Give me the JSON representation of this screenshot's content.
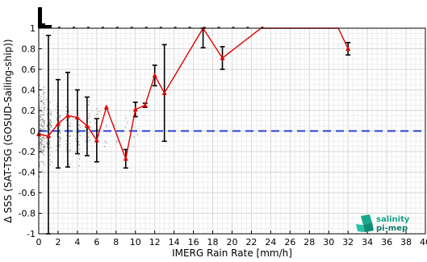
{
  "chart_data": {
    "type": "line",
    "xlabel": "IMERG Rain Rate [mm/h]",
    "ylabel": "Δ SSS (SAT-TSG (GOSUD-Sailing-ship))",
    "xlim": [
      0,
      40
    ],
    "ylim": [
      -1,
      1
    ],
    "x_ticks": [
      0,
      2,
      4,
      6,
      8,
      10,
      12,
      14,
      16,
      18,
      20,
      22,
      24,
      26,
      28,
      30,
      32,
      34,
      36,
      38,
      40
    ],
    "y_ticks": [
      -1,
      -0.8,
      -0.6,
      -0.4,
      -0.2,
      0,
      0.2,
      0.4,
      0.6,
      0.8,
      1
    ],
    "x_tick_labels": [
      "0",
      "2",
      "4",
      "6",
      "8",
      "10",
      "12",
      "14",
      "16",
      "18",
      "20",
      "22",
      "24",
      "26",
      "28",
      "30",
      "32",
      "34",
      "36",
      "38",
      "40"
    ],
    "y_tick_labels": [
      "-1",
      "-0.8",
      "-0.6",
      "-0.4",
      "-0.2",
      "0",
      "0.2",
      "0.4",
      "0.6",
      "0.8",
      "1"
    ],
    "grid": true,
    "zero_line": 0,
    "series": [
      {
        "color": "#e00000",
        "points": [
          {
            "x": 0,
            "y": -0.03
          },
          {
            "x": 1,
            "y": -0.05,
            "ylo": -1.0,
            "yhi": 0.93
          },
          {
            "x": 2,
            "y": 0.07,
            "ylo": -0.36,
            "yhi": 0.5
          },
          {
            "x": 3,
            "y": 0.15,
            "ylo": -0.35,
            "yhi": 0.57
          },
          {
            "x": 4,
            "y": 0.13,
            "ylo": -0.22,
            "yhi": 0.4
          },
          {
            "x": 5,
            "y": 0.05,
            "ylo": -0.24,
            "yhi": 0.33
          },
          {
            "x": 6,
            "y": -0.09,
            "ylo": -0.3,
            "yhi": 0.12
          },
          {
            "x": 7,
            "y": 0.23
          },
          {
            "x": 9,
            "y": -0.27,
            "ylo": -0.36,
            "yhi": -0.18
          },
          {
            "x": 10,
            "y": 0.21,
            "ylo": 0.14,
            "yhi": 0.28
          },
          {
            "x": 11,
            "y": 0.25,
            "ylo": 0.23,
            "yhi": 0.27
          },
          {
            "x": 12,
            "y": 0.54,
            "ylo": 0.44,
            "yhi": 0.64
          },
          {
            "x": 13,
            "y": 0.37,
            "ylo": -0.1,
            "yhi": 0.84
          },
          {
            "x": 17,
            "y": 1.0,
            "ylo": 0.81,
            "yhi": 1.0
          },
          {
            "x": 19,
            "y": 0.71,
            "ylo": 0.6,
            "yhi": 0.82
          },
          {
            "x": 23,
            "y": 1.0
          },
          {
            "x": 31,
            "y": 1.0
          },
          {
            "x": 32,
            "y": 0.8,
            "ylo": 0.74,
            "yhi": 0.86
          }
        ],
        "segments": [
          [
            0,
            16
          ],
          [
            16,
            17
          ]
        ]
      }
    ],
    "scatter_note_x": [
      0,
      1,
      2,
      3,
      4,
      5,
      6,
      7,
      8,
      9,
      10
    ],
    "legend": "none"
  },
  "logo": {
    "line1": "salinity",
    "line2": "pi-mep"
  }
}
